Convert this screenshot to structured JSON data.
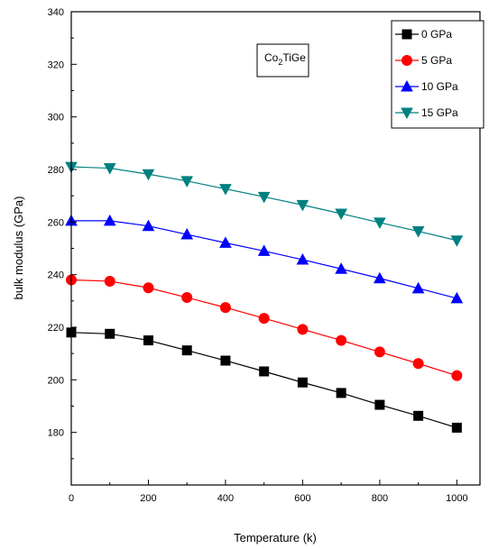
{
  "chart_data": {
    "type": "line",
    "title": "",
    "xlabel": "Temperature (k)",
    "ylabel": "bulk modulus (GPa)",
    "xlim": [
      0,
      1060
    ],
    "ylim": [
      160,
      340
    ],
    "xticks": [
      0,
      200,
      400,
      600,
      800,
      1000
    ],
    "yticks": [
      180,
      200,
      220,
      240,
      260,
      280,
      300,
      320,
      340
    ],
    "grid": false,
    "legend_position": "top-right",
    "annotation": {
      "base": "Co",
      "sub": "2",
      "rest": "TiGe"
    },
    "x": [
      0,
      100,
      200,
      300,
      400,
      500,
      600,
      700,
      800,
      900,
      1000
    ],
    "series": [
      {
        "name": "0 GPa",
        "color": "#000000",
        "marker": "square",
        "values": [
          218,
          217.5,
          215,
          211.2,
          207.3,
          203.2,
          199,
          195,
          190.5,
          186.3,
          181.8
        ]
      },
      {
        "name": "5 GPa",
        "color": "#ff0000",
        "marker": "circle",
        "values": [
          238,
          237.5,
          235,
          231.3,
          227.5,
          223.4,
          219.2,
          215,
          210.6,
          206.2,
          201.6
        ]
      },
      {
        "name": "10 GPa",
        "color": "#0000ff",
        "marker": "triangle-up",
        "values": [
          260.5,
          260.5,
          258.5,
          255.3,
          252.1,
          249,
          245.7,
          242.2,
          238.6,
          234.8,
          231
        ]
      },
      {
        "name": "15 GPa",
        "color": "#008080",
        "marker": "triangle-down",
        "values": [
          281,
          280.5,
          278.2,
          275.6,
          272.6,
          269.6,
          266.5,
          263.2,
          259.8,
          256.5,
          253
        ]
      }
    ]
  }
}
